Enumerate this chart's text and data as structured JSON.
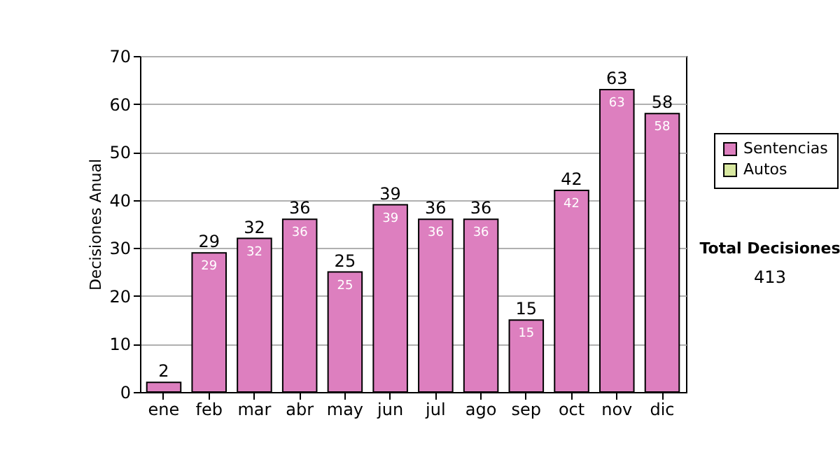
{
  "chart_data": {
    "type": "bar",
    "ylabel": "Decisiones Anual",
    "categories": [
      "ene",
      "feb",
      "mar",
      "abr",
      "may",
      "jun",
      "jul",
      "ago",
      "sep",
      "oct",
      "nov",
      "dic"
    ],
    "series": [
      {
        "name": "Sentencias",
        "color": "#dd7fbf",
        "values": [
          2,
          29,
          32,
          36,
          25,
          39,
          36,
          36,
          15,
          42,
          63,
          58
        ],
        "value_labels": [
          null,
          "29",
          "32",
          "36",
          "25",
          "39",
          "36",
          "36",
          "15",
          "42",
          "63",
          "58"
        ]
      },
      {
        "name": "Autos",
        "color": "#d8e8a0",
        "values": [
          null,
          null,
          null,
          null,
          null,
          null,
          null,
          null,
          null,
          null,
          null,
          null
        ]
      }
    ],
    "ylim": [
      0,
      70
    ],
    "yticks": [
      0,
      10,
      20,
      30,
      40,
      50,
      60,
      70
    ],
    "stacked": true,
    "totals": [
      "2",
      "29",
      "32",
      "36",
      "25",
      "39",
      "36",
      "36",
      "15",
      "42",
      "63",
      "58"
    ],
    "grid": "y",
    "legend": "right",
    "annotations": [
      "Total Decisiones",
      "413"
    ]
  }
}
